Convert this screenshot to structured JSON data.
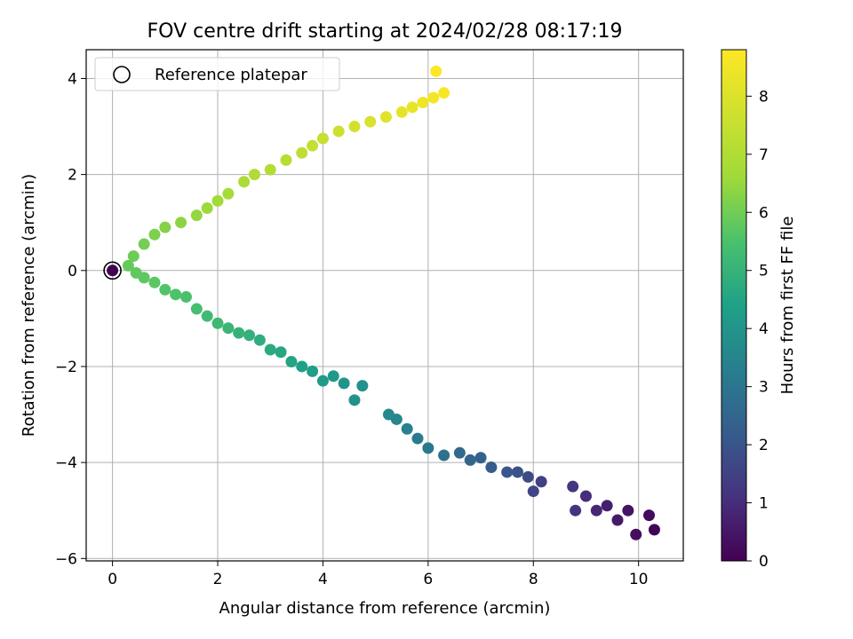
{
  "chart_data": {
    "type": "scatter",
    "title": "FOV centre drift starting at 2024/02/28 08:17:19",
    "xlabel": "Angular distance from reference (arcmin)",
    "ylabel": "Rotation from reference (arcmin)",
    "xlim": [
      -0.5,
      10.85
    ],
    "ylim": [
      -6.05,
      4.6
    ],
    "xticks": [
      0,
      2,
      4,
      6,
      8,
      10
    ],
    "yticks": [
      -6,
      -4,
      -2,
      0,
      2,
      4
    ],
    "xtick_labels": [
      "0",
      "2",
      "4",
      "6",
      "8",
      "10"
    ],
    "ytick_labels": [
      "−6",
      "−4",
      "−2",
      "0",
      "2",
      "4"
    ],
    "grid": true,
    "legend": {
      "placement": "top-left",
      "entries": [
        "Reference platepar"
      ]
    },
    "colorbar": {
      "label": "Hours from first FF file",
      "colormap": "viridis",
      "range": [
        0,
        8.8
      ],
      "ticks": [
        0,
        1,
        2,
        3,
        4,
        5,
        6,
        7,
        8
      ],
      "tick_labels": [
        "0",
        "1",
        "2",
        "3",
        "4",
        "5",
        "6",
        "7",
        "8"
      ]
    },
    "reference_point": {
      "x": 0,
      "y": 0
    },
    "lower_branch": {
      "x": [
        10.3,
        10.2,
        9.95,
        9.8,
        9.6,
        9.4,
        9.2,
        9.0,
        8.75,
        8.8,
        8.15,
        8.0,
        7.9,
        7.7,
        7.5,
        7.2,
        7.0,
        6.8,
        6.6,
        6.3,
        6.0,
        5.8,
        5.6,
        5.4,
        5.25,
        4.75,
        4.6,
        4.4,
        4.2,
        4.0,
        3.8,
        3.6,
        3.4,
        3.2,
        3.0,
        2.8,
        2.6,
        2.4,
        2.2,
        2.0,
        1.8,
        1.6,
        1.4,
        1.2,
        1.0,
        0.8,
        0.6,
        0.45,
        0.3
      ],
      "y": [
        -5.4,
        -5.1,
        -5.5,
        -5.0,
        -5.2,
        -4.9,
        -5.0,
        -4.7,
        -4.5,
        -5.0,
        -4.4,
        -4.6,
        -4.3,
        -4.2,
        -4.2,
        -4.1,
        -3.9,
        -3.95,
        -3.8,
        -3.85,
        -3.7,
        -3.5,
        -3.3,
        -3.1,
        -3.0,
        -2.4,
        -2.7,
        -2.35,
        -2.2,
        -2.3,
        -2.1,
        -2.0,
        -1.9,
        -1.7,
        -1.65,
        -1.45,
        -1.35,
        -1.3,
        -1.2,
        -1.1,
        -0.95,
        -0.8,
        -0.55,
        -0.5,
        -0.4,
        -0.25,
        -0.15,
        -0.05,
        0.1
      ],
      "hours": [
        0.05,
        0.2,
        0.3,
        0.4,
        0.55,
        0.7,
        0.85,
        1.0,
        1.2,
        1.15,
        1.5,
        1.6,
        1.75,
        1.9,
        2.05,
        2.2,
        2.35,
        2.5,
        2.65,
        2.85,
        3.05,
        3.2,
        3.35,
        3.5,
        3.6,
        3.85,
        3.9,
        4.0,
        4.1,
        4.2,
        4.3,
        4.4,
        4.5,
        4.6,
        4.7,
        4.8,
        4.9,
        5.0,
        5.1,
        5.2,
        5.3,
        5.4,
        5.5,
        5.55,
        5.6,
        5.7,
        5.75,
        5.8,
        5.85
      ]
    },
    "upper_branch": {
      "x": [
        0.4,
        0.6,
        0.8,
        1.0,
        1.3,
        1.6,
        1.8,
        2.0,
        2.2,
        2.5,
        2.7,
        3.0,
        3.3,
        3.6,
        3.8,
        4.0,
        4.3,
        4.6,
        4.9,
        5.2,
        5.5,
        5.7,
        5.9,
        6.1,
        6.3,
        6.15
      ],
      "y": [
        0.3,
        0.55,
        0.75,
        0.9,
        1.0,
        1.15,
        1.3,
        1.45,
        1.6,
        1.85,
        2.0,
        2.1,
        2.3,
        2.45,
        2.6,
        2.75,
        2.9,
        3.0,
        3.1,
        3.2,
        3.3,
        3.4,
        3.5,
        3.6,
        3.7,
        4.15
      ],
      "hours": [
        5.95,
        6.05,
        6.15,
        6.25,
        6.35,
        6.45,
        6.55,
        6.65,
        6.75,
        6.85,
        6.95,
        7.05,
        7.15,
        7.3,
        7.4,
        7.5,
        7.65,
        7.8,
        7.95,
        8.1,
        8.25,
        8.35,
        8.45,
        8.55,
        8.65,
        8.8
      ]
    }
  }
}
